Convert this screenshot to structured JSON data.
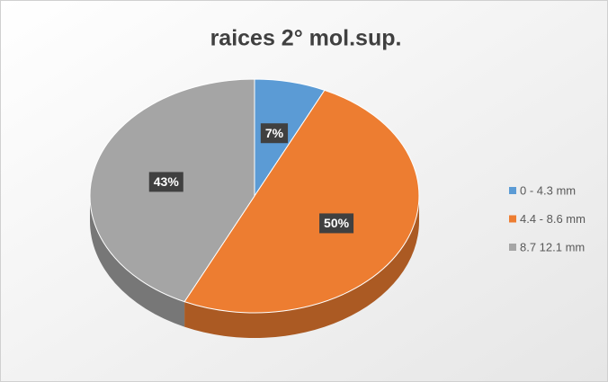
{
  "chart_data": {
    "type": "pie",
    "title": "raices 2° mol.sup.",
    "categories": [
      "0 - 4.3 mm",
      "4.4 - 8.6 mm",
      "8.7 12.1 mm"
    ],
    "values": [
      7,
      50,
      43
    ],
    "value_labels": [
      "7%",
      "50%",
      "43%"
    ],
    "colors": [
      "#5b9bd5",
      "#ed7d31",
      "#a5a5a5"
    ],
    "legend": "right"
  }
}
